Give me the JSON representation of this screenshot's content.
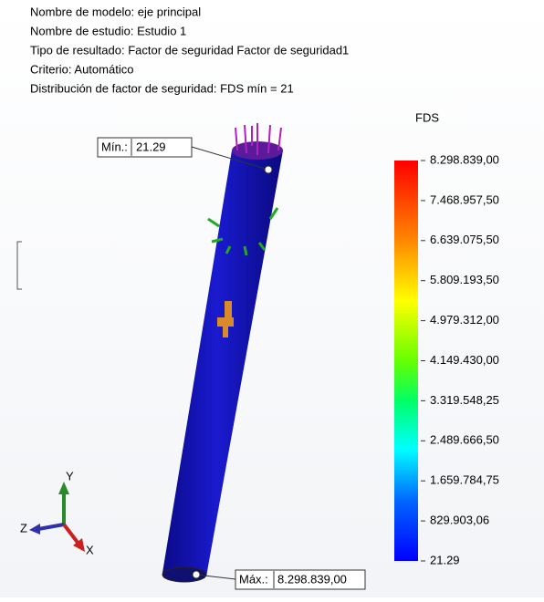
{
  "header": {
    "lines": [
      "Nombre de modelo: eje principal",
      "Nombre de estudio: Estudio 1",
      "Tipo de resultado: Factor de seguridad Factor de seguridad1",
      "Criterio: Automático",
      "Distribución de factor de seguridad: FDS mín = 21"
    ]
  },
  "legend": {
    "title": "FDS",
    "labels": [
      "8.298.839,00",
      "7.468.957,50",
      "6.639.075,50",
      "5.809.193,50",
      "4.979.312,00",
      "4.149.430,00",
      "3.319.548,25",
      "2.489.666,50",
      "1.659.784,75",
      "829.903,06",
      "21.29"
    ]
  },
  "min_annotation": {
    "label": "Mín.:",
    "value": "21.29"
  },
  "max_annotation": {
    "label": "Máx.:",
    "value": "8.298.839,00"
  },
  "triad": {
    "x": "X",
    "y": "Y",
    "z": "Z"
  }
}
